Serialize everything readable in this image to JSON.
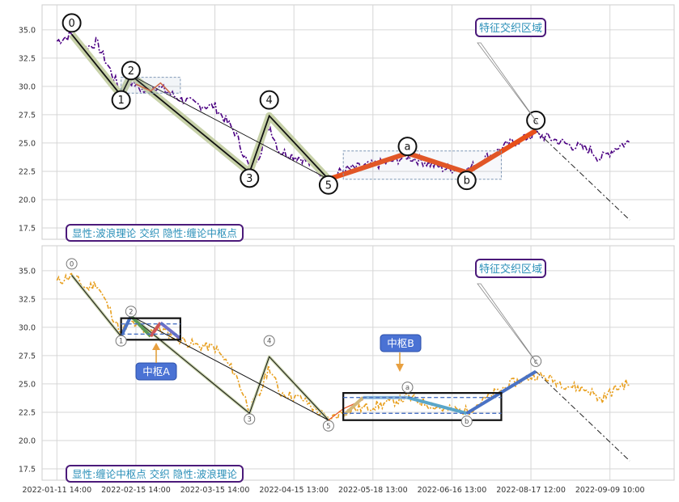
{
  "chart_data": [
    {
      "type": "line",
      "title": "",
      "xlabel": "",
      "ylabel": "",
      "x_ticks": [
        "2022-01-11 14:00",
        "2022-02-15 14:00",
        "2022-03-15 14:00",
        "2022-04-15 13:00",
        "2022-05-18 13:00",
        "2022-06-16 13:00",
        "2022-08-17 12:00",
        "2022-09-09 10:00"
      ],
      "y_ticks": [
        "17.5",
        "20.0",
        "22.5",
        "25.0",
        "27.5",
        "30.0",
        "32.5",
        "35.0"
      ],
      "ylim": [
        16.5,
        37.2
      ],
      "grid": true,
      "price_color": "#4b0082",
      "wave_labels": [
        {
          "label": "0",
          "x": 1.5,
          "y": 35.6
        },
        {
          "label": "1",
          "x": 6.5,
          "y": 28.8
        },
        {
          "label": "2",
          "x": 7.5,
          "y": 31.4
        },
        {
          "label": "3",
          "x": 19.5,
          "y": 21.9
        },
        {
          "label": "4",
          "x": 21.5,
          "y": 28.8
        },
        {
          "label": "5",
          "x": 27.5,
          "y": 21.3
        },
        {
          "label": "a",
          "x": 35.5,
          "y": 24.7
        },
        {
          "label": "b",
          "x": 41.5,
          "y": 21.7
        },
        {
          "label": "c",
          "x": 48.5,
          "y": 27.0
        }
      ],
      "legend_text": "显性:波浪理论 交织 隐性:缠论中枢点",
      "annotation": "特征交织区域"
    },
    {
      "type": "line",
      "title": "",
      "xlabel": "",
      "ylabel": "",
      "x_ticks": [
        "2022-01-11 14:00",
        "2022-02-15 14:00",
        "2022-03-15 14:00",
        "2022-04-15 13:00",
        "2022-05-18 13:00",
        "2022-06-16 13:00",
        "2022-08-17 12:00",
        "2022-09-09 10:00"
      ],
      "y_ticks": [
        "17.5",
        "20.0",
        "22.5",
        "25.0",
        "27.5",
        "30.0",
        "32.5",
        "35.0"
      ],
      "ylim": [
        16.5,
        37.2
      ],
      "grid": true,
      "price_color": "#e8a020",
      "wave_labels": [
        {
          "label": "0",
          "x": 1.5,
          "y": 35.6
        },
        {
          "label": "1",
          "x": 6.5,
          "y": 28.8
        },
        {
          "label": "2",
          "x": 7.5,
          "y": 31.4
        },
        {
          "label": "3",
          "x": 19.5,
          "y": 21.9
        },
        {
          "label": "4",
          "x": 21.5,
          "y": 28.8
        },
        {
          "label": "5",
          "x": 27.5,
          "y": 21.3
        },
        {
          "label": "a",
          "x": 35.5,
          "y": 24.7
        },
        {
          "label": "b",
          "x": 41.5,
          "y": 21.7
        },
        {
          "label": "c",
          "x": 48.5,
          "y": 27.0
        }
      ],
      "zhongshu_labels": [
        "中枢A",
        "中枢B"
      ],
      "legend_text": "显性:缠论中枢点 交织 隐性:波浪理论",
      "annotation": "特征交织区域"
    }
  ]
}
